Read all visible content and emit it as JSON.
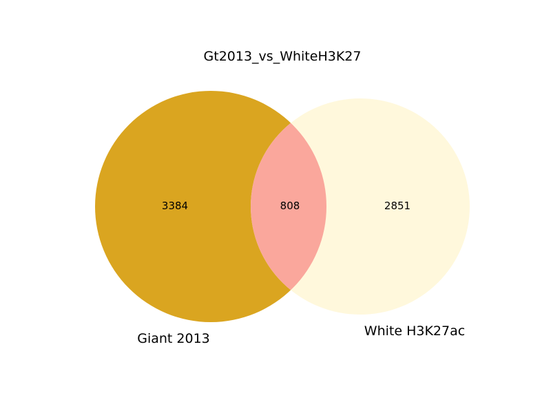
{
  "diagram": {
    "type": "venn2",
    "title": "Gt2013_vs_WhiteH3K27",
    "sets": [
      {
        "name": "Giant 2013",
        "only_count": "3384",
        "color": "#DAA520"
      },
      {
        "name": "White H3K27ac",
        "only_count": "2851",
        "color": "#FFF8DC"
      }
    ],
    "intersection": {
      "count": "808",
      "color": "#FAA79C"
    }
  }
}
